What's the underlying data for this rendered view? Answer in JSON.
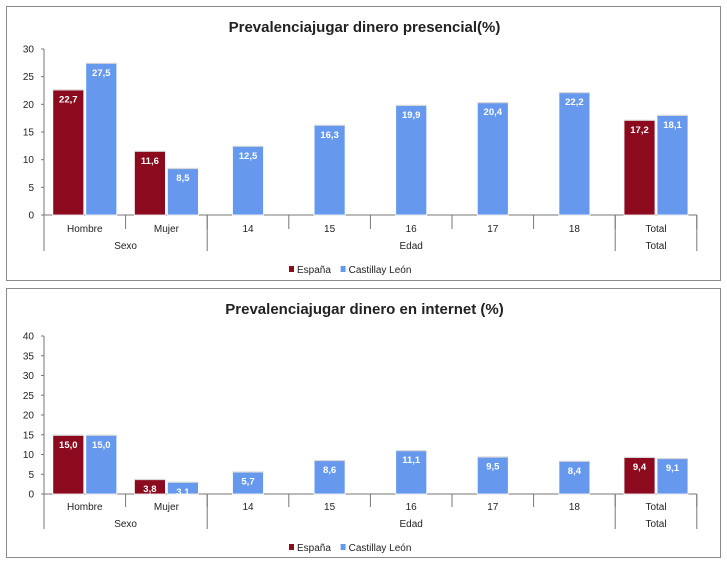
{
  "chart_data": [
    {
      "type": "bar",
      "title": "Prevalenciajugar dinero presencial(%)",
      "ylim": [
        0,
        30
      ],
      "yticks": [
        0,
        5,
        10,
        15,
        20,
        25,
        30
      ],
      "categories": [
        "Hombre",
        "Mujer",
        "14",
        "15",
        "16",
        "17",
        "18",
        "Total"
      ],
      "groups": [
        {
          "label": "Sexo",
          "categories": [
            "Hombre",
            "Mujer"
          ]
        },
        {
          "label": "Edad",
          "categories": [
            "14",
            "15",
            "16",
            "17",
            "18"
          ]
        },
        {
          "label": "Total",
          "categories": [
            "Total"
          ]
        }
      ],
      "series": [
        {
          "name": "España",
          "color": "#8b0a1e",
          "values": [
            22.7,
            11.6,
            null,
            null,
            null,
            null,
            null,
            17.2
          ],
          "labels": [
            "22,7",
            "11,6",
            "",
            "",
            "",
            "",
            "",
            "17,2"
          ]
        },
        {
          "name": "Castillay León",
          "color": "#6699ee",
          "values": [
            27.5,
            8.5,
            12.5,
            16.3,
            19.9,
            20.4,
            22.2,
            18.1
          ],
          "labels": [
            "27,5",
            "8,5",
            "12,5",
            "16,3",
            "19,9",
            "20,4",
            "22,2",
            "18,1"
          ]
        }
      ],
      "legend": "bottom-center",
      "grid": false
    },
    {
      "type": "bar",
      "title": "Prevalenciajugar dinero en internet (%)",
      "ylim": [
        0,
        40
      ],
      "yticks": [
        0,
        5,
        10,
        15,
        20,
        25,
        30,
        35,
        40
      ],
      "categories": [
        "Hombre",
        "Mujer",
        "14",
        "15",
        "16",
        "17",
        "18",
        "Total"
      ],
      "groups": [
        {
          "label": "Sexo",
          "categories": [
            "Hombre",
            "Mujer"
          ]
        },
        {
          "label": "Edad",
          "categories": [
            "14",
            "15",
            "16",
            "17",
            "18"
          ]
        },
        {
          "label": "Total",
          "categories": [
            "Total"
          ]
        }
      ],
      "series": [
        {
          "name": "España",
          "color": "#8b0a1e",
          "values": [
            15.0,
            3.8,
            null,
            null,
            null,
            null,
            null,
            9.4
          ],
          "labels": [
            "15,0",
            "3,8",
            "",
            "",
            "",
            "",
            "",
            "9,4"
          ]
        },
        {
          "name": "Castillay León",
          "color": "#6699ee",
          "values": [
            15.0,
            3.1,
            5.7,
            8.6,
            11.1,
            9.5,
            8.4,
            9.1
          ],
          "labels": [
            "15,0",
            "3,1",
            "5,7",
            "8,6",
            "11,1",
            "9,5",
            "8,4",
            "9,1"
          ]
        }
      ],
      "legend": "bottom-center",
      "grid": false
    }
  ]
}
